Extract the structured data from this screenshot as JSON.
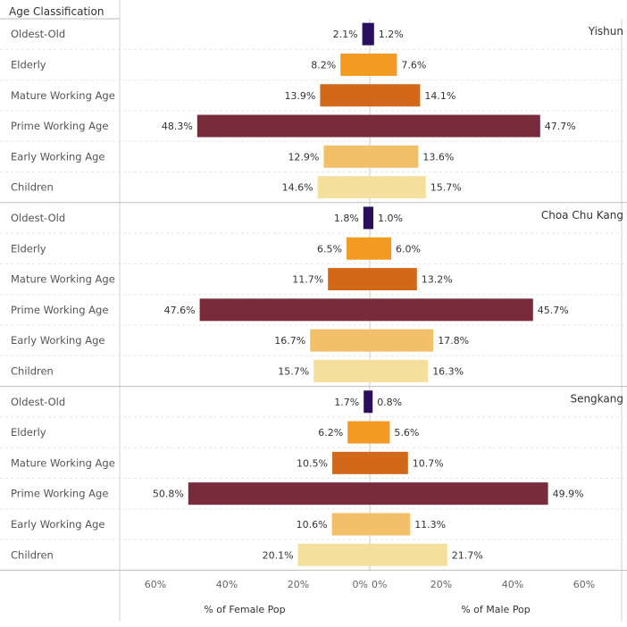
{
  "header": {
    "row_label": "Age Classification"
  },
  "colors": {
    "Oldest-Old": "#2a0f5e",
    "Elderly": "#f39a22",
    "Mature Working Age": "#d2681a",
    "Prime Working Age": "#782c3b",
    "Early Working Age": "#f3c06a",
    "Children": "#f5df9c"
  },
  "chart_data": {
    "type": "bar",
    "categories": [
      "Oldest-Old",
      "Elderly",
      "Mature Working Age",
      "Prime Working Age",
      "Early Working Age",
      "Children"
    ],
    "panels": [
      {
        "name": "Yishun",
        "female": [
          2.1,
          8.2,
          13.9,
          48.3,
          12.9,
          14.6
        ],
        "male": [
          1.2,
          7.6,
          14.1,
          47.7,
          13.6,
          15.7
        ],
        "female_labels": [
          "2.1%",
          "8.2%",
          "13.9%",
          "48.3%",
          "12.9%",
          "14.6%"
        ],
        "male_labels": [
          "1.2%",
          "7.6%",
          "14.1%",
          "47.7%",
          "13.6%",
          "15.7%"
        ]
      },
      {
        "name": "Choa Chu Kang",
        "female": [
          1.8,
          6.5,
          11.7,
          47.6,
          16.7,
          15.7
        ],
        "male": [
          1.0,
          6.0,
          13.2,
          45.7,
          17.8,
          16.3
        ],
        "female_labels": [
          "1.8%",
          "6.5%",
          "11.7%",
          "47.6%",
          "16.7%",
          "15.7%"
        ],
        "male_labels": [
          "1.0%",
          "6.0%",
          "13.2%",
          "45.7%",
          "17.8%",
          "16.3%"
        ]
      },
      {
        "name": "Sengkang",
        "female": [
          1.7,
          6.2,
          10.5,
          50.8,
          10.6,
          20.1
        ],
        "male": [
          0.8,
          5.6,
          10.7,
          49.9,
          11.3,
          21.7
        ],
        "female_labels": [
          "1.7%",
          "6.2%",
          "10.5%",
          "50.8%",
          "10.6%",
          "20.1%"
        ],
        "male_labels": [
          "0.8%",
          "5.6%",
          "10.7%",
          "49.9%",
          "11.3%",
          "21.7%"
        ]
      }
    ],
    "female_axis": {
      "label": "% of Female Pop",
      "ticks": [
        "60%",
        "40%",
        "20%",
        "0%"
      ],
      "tick_values": [
        60,
        40,
        20,
        0
      ],
      "range": [
        70,
        0
      ]
    },
    "male_axis": {
      "label": "% of Male Pop",
      "ticks": [
        "0%",
        "20%",
        "40%",
        "60%"
      ],
      "tick_values": [
        0,
        20,
        40,
        60
      ],
      "range": [
        0,
        70
      ]
    },
    "grid": true
  }
}
